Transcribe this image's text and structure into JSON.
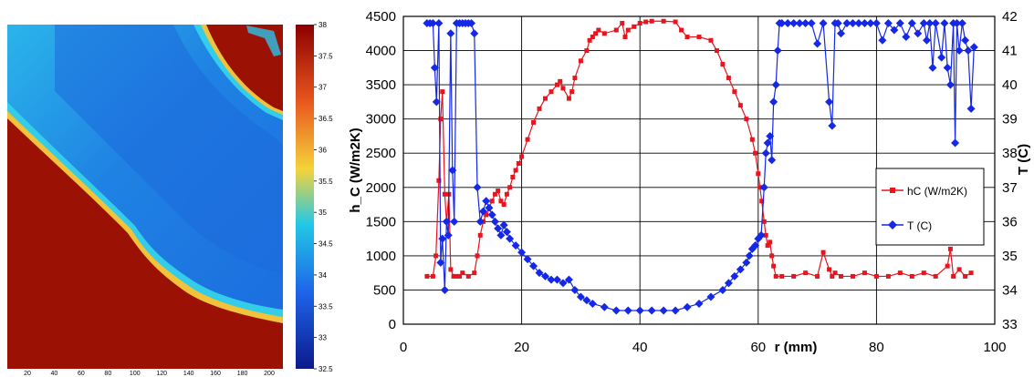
{
  "colorbar": {
    "ticks": [
      "38",
      "37.5",
      "37",
      "36.5",
      "36",
      "35.5",
      "35",
      "34.5",
      "34",
      "33.5",
      "33",
      "32.5"
    ],
    "range": [
      32.5,
      38
    ],
    "colors": [
      "#0b1a8c",
      "#1e63e8",
      "#22c8e6",
      "#f5d33a",
      "#e8551e",
      "#8b0000"
    ]
  },
  "thermal_image": {
    "x_ticks": [
      "20",
      "40",
      "60",
      "80",
      "100",
      "120",
      "140",
      "160",
      "180",
      "200"
    ],
    "colors": {
      "hot": "#9b1205",
      "edge": "#f2c23a",
      "cyan": "#2cc3ea",
      "blue": "#1e70e0"
    }
  },
  "chart_data": {
    "type": "line",
    "xlabel": "r (mm)",
    "ylabel": "h_C (W/m2K)",
    "y2label": "T (C)",
    "xlim": [
      0,
      100
    ],
    "ylim": [
      0,
      4500
    ],
    "y2lim": [
      33,
      42
    ],
    "x_ticks": [
      "0",
      "20",
      "40",
      "60",
      "80",
      "100"
    ],
    "y_ticks": [
      "0",
      "500",
      "1000",
      "1500",
      "2000",
      "2500",
      "3000",
      "3500",
      "4000",
      "4500"
    ],
    "y2_ticks": [
      "33",
      "34",
      "35",
      "36",
      "37",
      "38",
      "39",
      "40",
      "41",
      "42"
    ],
    "grid": true,
    "legend_position": "right",
    "series": [
      {
        "name": "hC (W/m2K)",
        "axis": "left",
        "color": "#e8141e",
        "marker": "square",
        "x": [
          4.0,
          5.0,
          5.5,
          6.0,
          6.3,
          6.6,
          7.0,
          7.3,
          7.7,
          8.0,
          8.5,
          9.0,
          9.5,
          10.0,
          11.0,
          12.0,
          12.5,
          13.0,
          13.5,
          14.0,
          14.5,
          15.0,
          15.5,
          16.0,
          16.5,
          17.0,
          17.5,
          18.0,
          18.5,
          19.0,
          19.5,
          20.0,
          21.0,
          22.0,
          23.0,
          24.0,
          25.0,
          26.0,
          26.5,
          27.0,
          28.0,
          28.5,
          29.0,
          30.0,
          31.0,
          31.5,
          32.0,
          32.5,
          33.0,
          34.0,
          36.0,
          37.0,
          37.5,
          38.0,
          39.0,
          40.0,
          41.0,
          42.0,
          44.0,
          46.0,
          47.0,
          48.0,
          50.0,
          52.0,
          53.0,
          54.0,
          55.0,
          56.0,
          57.0,
          58.0,
          59.0,
          59.5,
          60.0,
          60.3,
          60.6,
          61.0,
          61.3,
          61.6,
          62.0,
          62.3,
          62.6,
          63.0,
          64.0,
          66.0,
          68.0,
          70.0,
          71.0,
          72.0,
          72.5,
          73.0,
          74.0,
          76.0,
          78.0,
          80.0,
          82.0,
          84.0,
          86.0,
          88.0,
          90.0,
          92.0,
          92.5,
          93.0,
          94.0,
          95.0,
          96.0
        ],
        "values": [
          700,
          700,
          1000,
          2100,
          3000,
          3400,
          1900,
          1500,
          1900,
          800,
          700,
          700,
          700,
          750,
          700,
          750,
          1000,
          1300,
          1500,
          1600,
          1700,
          1800,
          1900,
          1950,
          1800,
          1750,
          1900,
          2000,
          2150,
          2250,
          2350,
          2450,
          2700,
          2950,
          3150,
          3300,
          3400,
          3500,
          3550,
          3450,
          3300,
          3400,
          3600,
          3850,
          4000,
          4150,
          4200,
          4250,
          4300,
          4250,
          4300,
          4400,
          4200,
          4300,
          4350,
          4400,
          4420,
          4430,
          4430,
          4420,
          4300,
          4200,
          4200,
          4150,
          4000,
          3800,
          3600,
          3400,
          3200,
          3000,
          2700,
          2500,
          2200,
          2000,
          1800,
          1500,
          1300,
          1150,
          1200,
          1000,
          850,
          700,
          700,
          700,
          750,
          700,
          1050,
          800,
          700,
          750,
          700,
          700,
          750,
          700,
          700,
          750,
          700,
          750,
          700,
          850,
          1100,
          700,
          800,
          700,
          750
        ]
      },
      {
        "name": "T (C)",
        "axis": "right",
        "color": "#1428e6",
        "marker": "diamond",
        "x": [
          4.0,
          4.5,
          5.0,
          5.3,
          5.6,
          6.0,
          6.3,
          6.6,
          7.0,
          7.3,
          7.6,
          8.0,
          8.3,
          8.6,
          9.0,
          9.5,
          10.0,
          10.5,
          11.0,
          11.5,
          12.0,
          12.5,
          13.0,
          13.5,
          14.0,
          14.5,
          15.0,
          15.5,
          16.0,
          16.5,
          17.0,
          17.5,
          18.0,
          19.0,
          20.0,
          21.0,
          22.0,
          23.0,
          24.0,
          25.0,
          26.0,
          27.0,
          28.0,
          29.0,
          30.0,
          31.0,
          32.0,
          34.0,
          36.0,
          38.0,
          40.0,
          42.0,
          44.0,
          46.0,
          48.0,
          50.0,
          52.0,
          54.0,
          55.0,
          56.0,
          57.0,
          58.0,
          58.5,
          59.0,
          59.5,
          60.0,
          60.5,
          61.0,
          61.3,
          61.6,
          62.0,
          62.3,
          62.6,
          63.0,
          63.3,
          63.6,
          64.0,
          65.0,
          66.0,
          67.0,
          68.0,
          69.0,
          70.0,
          71.0,
          72.0,
          72.5,
          73.0,
          73.5,
          74.0,
          75.0,
          76.0,
          77.0,
          78.0,
          79.0,
          80.0,
          81.0,
          82.0,
          83.0,
          84.0,
          85.0,
          86.0,
          87.0,
          88.0,
          88.5,
          89.0,
          89.5,
          90.0,
          91.0,
          91.5,
          92.0,
          92.5,
          93.0,
          93.3,
          93.6,
          94.0,
          94.5,
          95.0,
          95.5,
          96.0,
          96.5
        ],
        "values": [
          41.8,
          41.8,
          41.8,
          40.5,
          39.5,
          41.8,
          34.8,
          35.5,
          34.0,
          36.0,
          35.6,
          41.5,
          37.5,
          36.0,
          41.8,
          41.8,
          41.8,
          41.8,
          41.8,
          41.8,
          41.5,
          37.0,
          36.0,
          36.3,
          36.6,
          36.4,
          36.2,
          36.0,
          35.8,
          35.6,
          35.9,
          35.7,
          35.5,
          35.3,
          35.1,
          34.9,
          34.7,
          34.5,
          34.4,
          34.3,
          34.3,
          34.2,
          34.3,
          34.0,
          33.8,
          33.7,
          33.6,
          33.5,
          33.4,
          33.4,
          33.4,
          33.4,
          33.4,
          33.4,
          33.5,
          33.6,
          33.8,
          34.0,
          34.2,
          34.4,
          34.6,
          34.8,
          35.0,
          35.2,
          35.3,
          35.5,
          35.6,
          37.0,
          38.0,
          38.3,
          38.5,
          37.8,
          39.5,
          40.0,
          41.0,
          41.8,
          41.8,
          41.8,
          41.8,
          41.8,
          41.8,
          41.8,
          41.2,
          41.8,
          39.5,
          38.8,
          41.8,
          41.8,
          41.5,
          41.8,
          41.8,
          41.8,
          41.8,
          41.8,
          41.8,
          41.3,
          41.8,
          41.6,
          41.8,
          41.4,
          41.8,
          41.5,
          41.8,
          41.3,
          41.8,
          40.5,
          41.8,
          40.8,
          41.8,
          40.5,
          40.0,
          41.8,
          38.3,
          41.8,
          41.0,
          41.8,
          41.3,
          41.0,
          39.3,
          41.1
        ]
      }
    ]
  }
}
